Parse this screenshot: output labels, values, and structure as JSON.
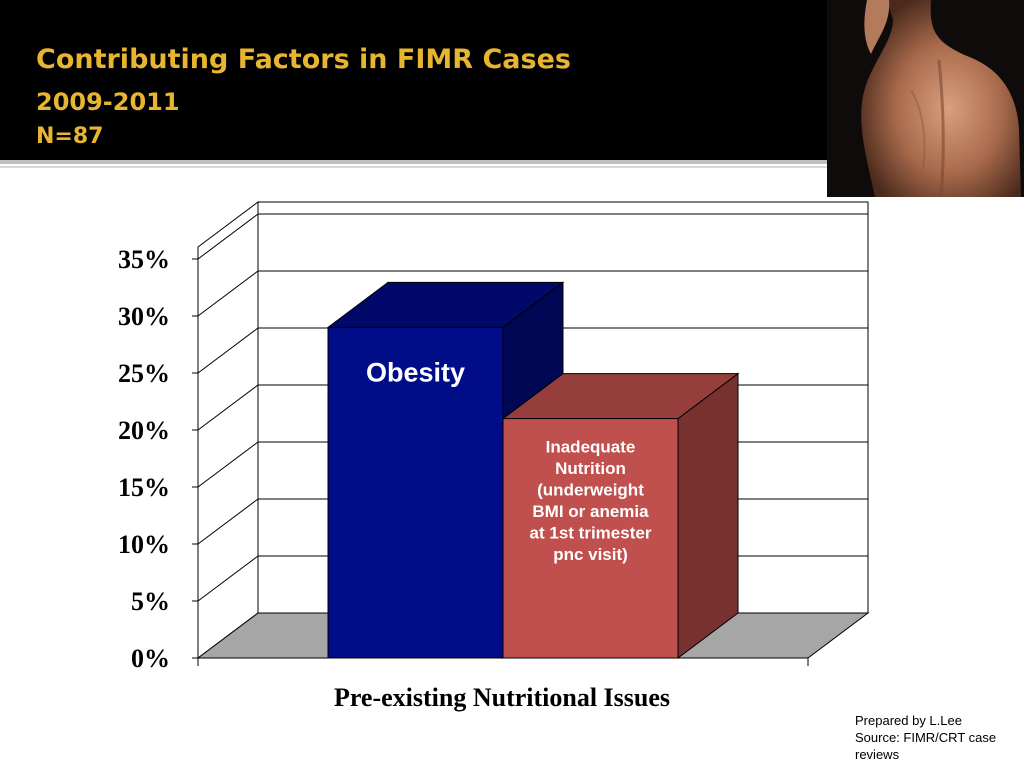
{
  "slide": {
    "title_line1": "Contributing Factors in FIMR Cases",
    "title_line2": "2009-2011",
    "title_line3": "N=87",
    "footer_line1": "Prepared by L.Lee",
    "footer_line2": "Source: FIMR/CRT case reviews",
    "photo_icon": "bare-back-photo"
  },
  "chart_data": {
    "type": "bar",
    "style": "3d",
    "title": "",
    "xlabel": "Pre-existing Nutritional Issues",
    "ylabel": "",
    "ylim": [
      0,
      35
    ],
    "yticks": [
      "0%",
      "5%",
      "10%",
      "15%",
      "20%",
      "25%",
      "30%",
      "35%"
    ],
    "grid": true,
    "legend": "none",
    "categories": [
      "Obesity",
      "Inadequate Nutrition (underweight BMI or anemia at 1st trimester pnc visit)"
    ],
    "label_lines": [
      [
        "Obesity"
      ],
      [
        "Inadequate",
        "Nutrition",
        "(underweight",
        "BMI or anemia",
        "at 1st trimester",
        "pnc visit)"
      ]
    ],
    "values": [
      29,
      21
    ],
    "colors": [
      "#000c88",
      "#c0504d"
    ]
  }
}
